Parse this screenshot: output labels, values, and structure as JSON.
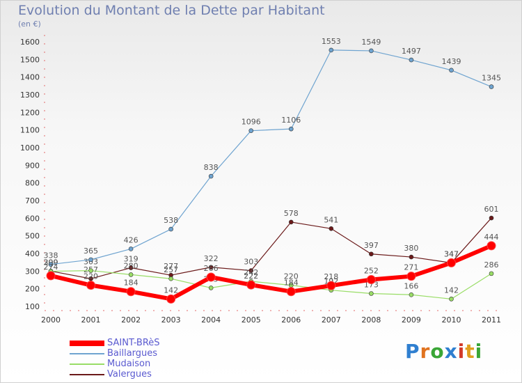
{
  "chart_data": {
    "type": "line",
    "title": "Evolution du Montant de la Dette par Habitant",
    "subtitle": "(en €)",
    "xlabel": "",
    "ylabel": "",
    "x": [
      "2000",
      "2001",
      "2002",
      "2003",
      "2004",
      "2005",
      "2006",
      "2007",
      "2008",
      "2009",
      "2010",
      "2011"
    ],
    "ylim": [
      100,
      1600
    ],
    "yticks": [
      100,
      200,
      300,
      400,
      500,
      600,
      700,
      800,
      900,
      1000,
      1100,
      1200,
      1300,
      1400,
      1500,
      1600
    ],
    "grid": false,
    "legend_position": "bottom-left",
    "series": [
      {
        "name": "Valergues",
        "color": "#6b1a1a",
        "values": [
          300,
          257,
          319,
          277,
          322,
          303,
          578,
          541,
          397,
          380,
          347,
          601
        ]
      },
      {
        "name": "Mudaison",
        "color": "#99dd66",
        "values": [
          299,
          303,
          280,
          257,
          205,
          242,
          220,
          192,
          173,
          166,
          142,
          286
        ]
      },
      {
        "name": "Baillargues",
        "color": "#6fa4d0",
        "values": [
          338,
          365,
          426,
          538,
          838,
          1096,
          1106,
          1553,
          1549,
          1497,
          1439,
          1345
        ]
      },
      {
        "name": "SAINT-BRèS",
        "color": "#ff0000",
        "values": [
          274,
          220,
          184,
          142,
          266,
          222,
          184,
          218,
          252,
          271,
          347,
          444
        ]
      }
    ]
  },
  "legend": [
    {
      "label": "SAINT-BRèS",
      "color": "#ff0000"
    },
    {
      "label": "Baillargues",
      "color": "#6fa4d0"
    },
    {
      "label": "Mudaison",
      "color": "#99dd66"
    },
    {
      "label": "Valergues",
      "color": "#6b1a1a"
    }
  ],
  "logo": {
    "letters": [
      "P",
      "r",
      "o",
      "x",
      "i",
      "t",
      "i"
    ],
    "colors": [
      "#2f7fd0",
      "#e0731f",
      "#3aa636",
      "#2f7fd0",
      "#d23a2a",
      "#e0a020",
      "#3aa636"
    ]
  }
}
